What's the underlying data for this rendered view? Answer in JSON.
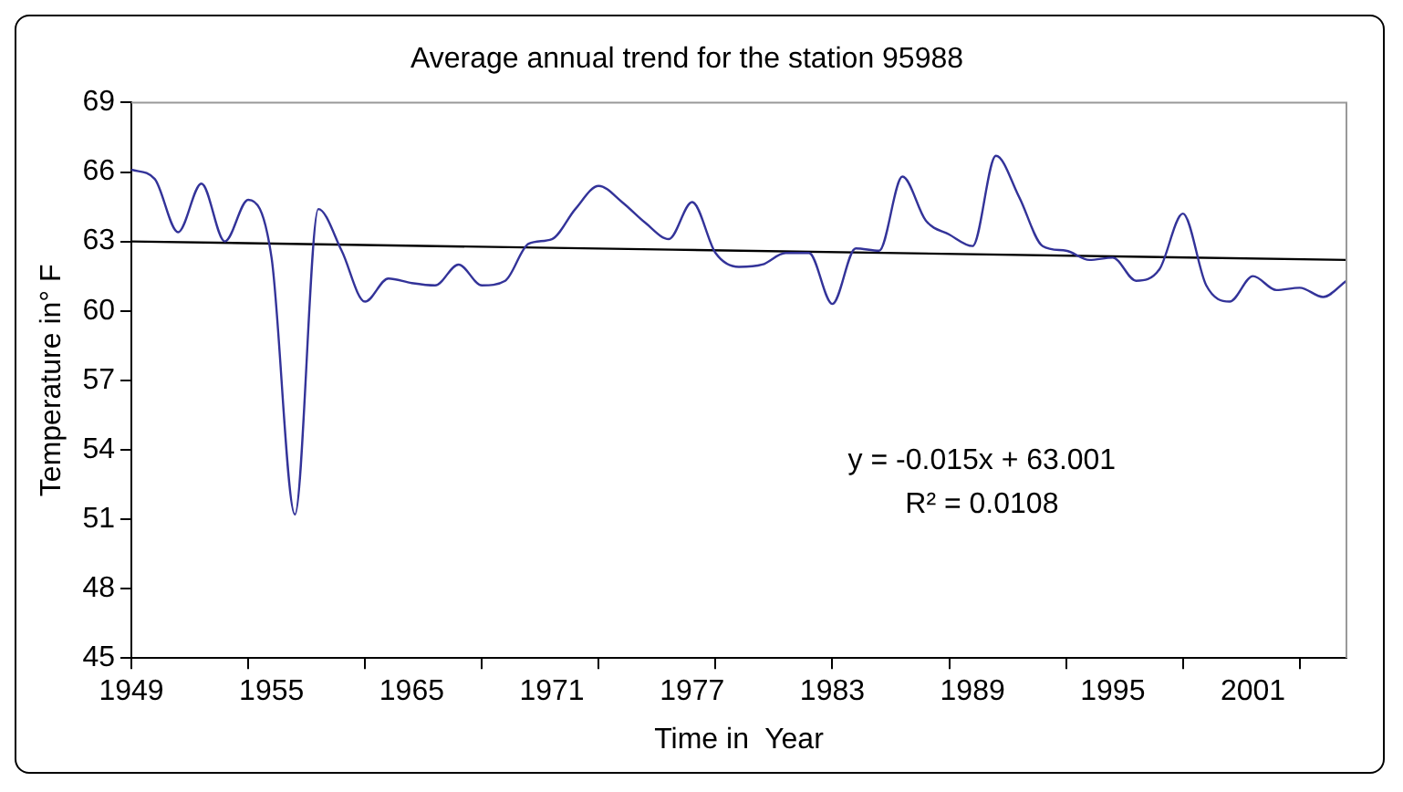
{
  "chart_data": {
    "type": "line",
    "title": "Average annual trend for the station 95988",
    "xlabel": "Time in  Year",
    "ylabel": "Temperature in° F",
    "categories": [
      "1949",
      null,
      null,
      null,
      null,
      null,
      "1955",
      null,
      null,
      null,
      null,
      null,
      "1965",
      null,
      null,
      null,
      null,
      null,
      "1971",
      null,
      null,
      null,
      null,
      null,
      "1977",
      null,
      null,
      null,
      null,
      null,
      "1983",
      null,
      null,
      null,
      null,
      null,
      "1989",
      null,
      null,
      null,
      null,
      null,
      "1995",
      null,
      null,
      null,
      null,
      null,
      "2001",
      null,
      null,
      null,
      null
    ],
    "series": [
      {
        "color": "#333399",
        "values": [
          66.1,
          65.7,
          63.4,
          65.5,
          63.0,
          64.8,
          62.3,
          51.2,
          64.4,
          62.6,
          60.4,
          61.4,
          61.2,
          61.1,
          62.0,
          61.1,
          61.3,
          62.9,
          63.1,
          64.4,
          65.4,
          64.7,
          63.8,
          63.1,
          64.7,
          62.5,
          61.9,
          62.0,
          62.5,
          62.5,
          60.3,
          62.7,
          62.6,
          65.8,
          63.9,
          63.3,
          62.8,
          66.7,
          64.9,
          62.8,
          62.6,
          62.2,
          62.3,
          61.3,
          61.8,
          64.2,
          61.1,
          60.4,
          61.5,
          60.9,
          61.0,
          60.6,
          61.3
        ]
      },
      {
        "color": "#000000",
        "values": [
          63.0,
          null,
          null,
          null,
          null,
          null,
          null,
          null,
          null,
          null,
          null,
          null,
          null,
          null,
          null,
          null,
          null,
          null,
          null,
          null,
          null,
          null,
          null,
          null,
          null,
          null,
          null,
          null,
          null,
          null,
          null,
          null,
          null,
          null,
          null,
          null,
          null,
          null,
          null,
          null,
          null,
          null,
          null,
          null,
          null,
          null,
          null,
          null,
          null,
          null,
          null,
          null,
          62.2
        ]
      }
    ],
    "ylim": [
      45,
      69
    ],
    "yticks": [
      45,
      48,
      51,
      54,
      57,
      60,
      63,
      66,
      69
    ],
    "grid": false,
    "legend": false,
    "marker": "none",
    "line_style": "solid",
    "annotations": [
      "y = -0.015x + 63.001",
      "R² = 0.0108"
    ]
  }
}
